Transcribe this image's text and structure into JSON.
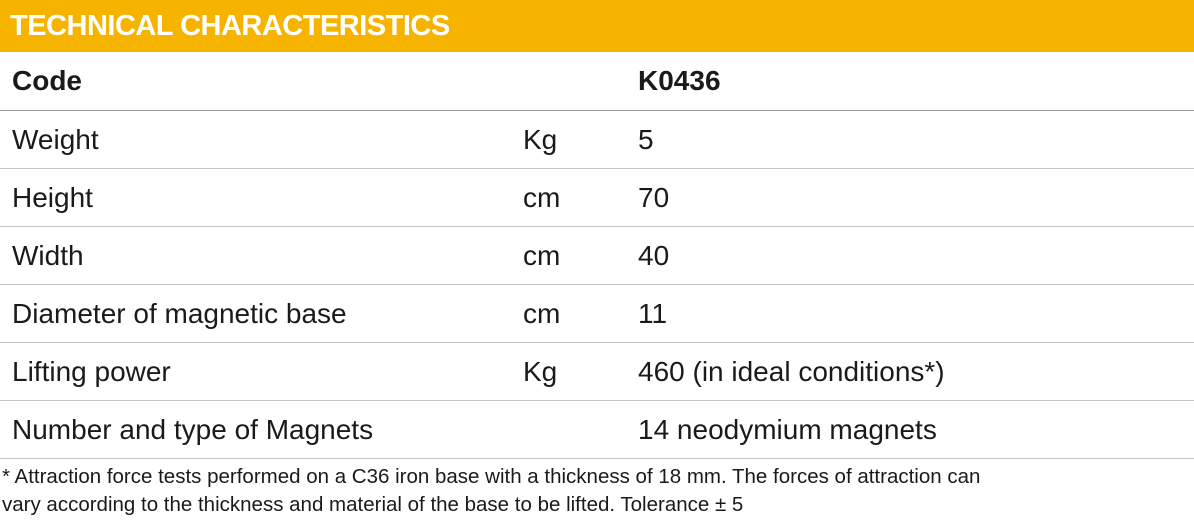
{
  "header": {
    "title": "TECHNICAL CHARACTERISTICS"
  },
  "table": {
    "header": {
      "label": "Code",
      "value": "K0436"
    },
    "rows": [
      {
        "label": "Weight",
        "unit": "Kg",
        "value": "5"
      },
      {
        "label": "Height",
        "unit": "cm",
        "value": "70"
      },
      {
        "label": "Width",
        "unit": "cm",
        "value": "40"
      },
      {
        "label": "Diameter of magnetic base",
        "unit": "cm",
        "value": "11"
      },
      {
        "label": "Lifting power",
        "unit": "Kg",
        "value": "460 (in ideal conditions*)"
      },
      {
        "label": "Number and type of Magnets",
        "value": "14 neodymium magnets"
      }
    ]
  },
  "footnote": {
    "lines": [
      "* Attraction force tests performed on a C36 iron base with a thickness of 18 mm. The forces of attraction can",
      "vary according to the thickness and material of the base to be lifted. Tolerance ± 5"
    ]
  }
}
